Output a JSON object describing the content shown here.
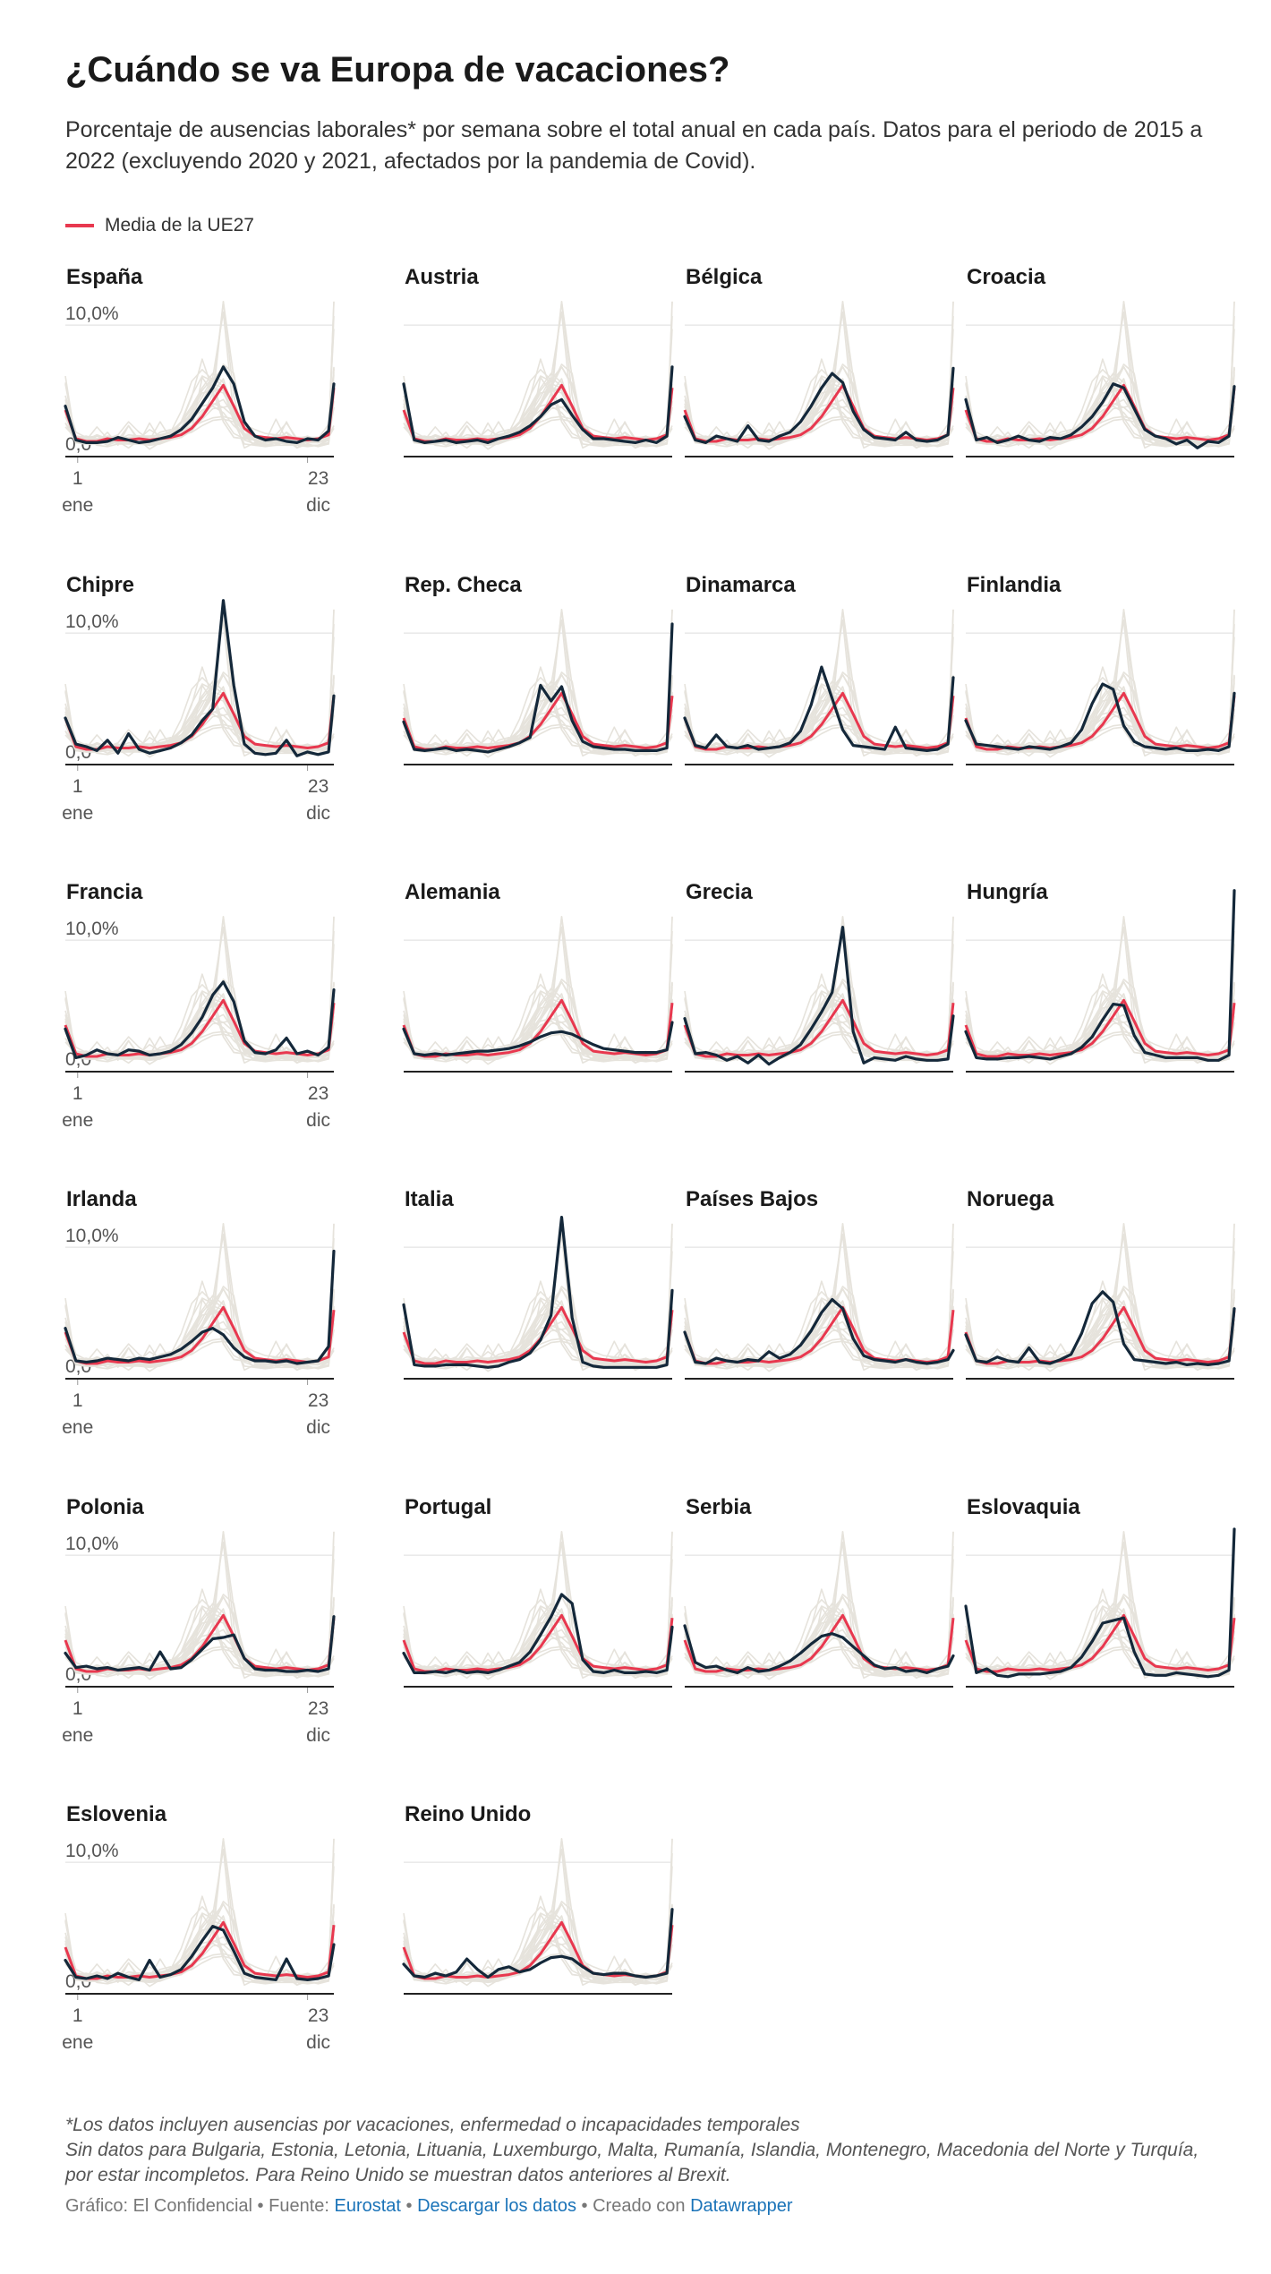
{
  "header": {
    "title": "¿Cuándo se va Europa de vacaciones?",
    "subtitle": "Porcentaje de ausencias laborales* por semana sobre el total anual en cada país. Datos para el periodo de 2015 a 2022 (excluyendo 2020 y 2021, afectados por la pandemia de Covid).",
    "legend_label": "Media de la UE27"
  },
  "colors": {
    "eu_average": "#e8384f",
    "country": "#14283a",
    "background_lines": "#e6e3dc",
    "grid": "#dddddd"
  },
  "axis": {
    "y_top_label": "10,0%",
    "y_bottom_label": "0,0",
    "x_start": "1",
    "x_start_sub": "ene",
    "x_end": "23",
    "x_end_sub": "dic"
  },
  "chart_data": {
    "type": "line",
    "x_unit": "semana",
    "x": [
      1,
      3,
      5,
      7,
      9,
      11,
      13,
      15,
      17,
      19,
      21,
      23,
      25,
      27,
      29,
      31,
      33,
      35,
      37,
      39,
      41,
      43,
      45,
      47,
      49,
      51,
      52
    ],
    "ylim": [
      0,
      12
    ],
    "eu_average": [
      3.5,
      1.3,
      1.1,
      1.1,
      1.3,
      1.2,
      1.2,
      1.3,
      1.2,
      1.3,
      1.4,
      1.6,
      2.1,
      3.0,
      4.2,
      5.4,
      3.8,
      2.1,
      1.5,
      1.4,
      1.3,
      1.4,
      1.3,
      1.2,
      1.3,
      1.6,
      5.2
    ],
    "panels": [
      {
        "name": "España",
        "x_axis": true,
        "values": [
          3.8,
          1.2,
          1.0,
          1.0,
          1.1,
          1.4,
          1.2,
          1.0,
          1.1,
          1.3,
          1.5,
          2.0,
          2.8,
          4.0,
          5.2,
          6.8,
          5.5,
          2.6,
          1.5,
          1.2,
          1.3,
          1.1,
          1.0,
          1.3,
          1.2,
          1.9,
          5.5
        ]
      },
      {
        "name": "Austria",
        "x_axis": false,
        "values": [
          5.5,
          1.2,
          1.0,
          1.1,
          1.2,
          1.0,
          1.1,
          1.2,
          1.0,
          1.3,
          1.5,
          1.8,
          2.3,
          3.0,
          3.9,
          4.3,
          3.1,
          2.0,
          1.3,
          1.3,
          1.2,
          1.1,
          1.0,
          1.2,
          1.0,
          1.5,
          6.8
        ]
      },
      {
        "name": "Bélgica",
        "x_axis": false,
        "values": [
          3.0,
          1.2,
          1.0,
          1.5,
          1.3,
          1.1,
          2.3,
          1.2,
          1.1,
          1.5,
          1.8,
          2.6,
          3.8,
          5.2,
          6.3,
          5.6,
          3.4,
          2.0,
          1.4,
          1.3,
          1.2,
          1.8,
          1.2,
          1.1,
          1.2,
          1.6,
          6.7
        ]
      },
      {
        "name": "Croacia",
        "x_axis": false,
        "values": [
          4.3,
          1.2,
          1.4,
          1.0,
          1.2,
          1.5,
          1.2,
          1.1,
          1.4,
          1.3,
          1.6,
          2.2,
          3.0,
          4.1,
          5.5,
          5.2,
          3.6,
          2.0,
          1.5,
          1.3,
          0.9,
          1.2,
          0.6,
          1.1,
          1.0,
          1.5,
          5.3
        ]
      },
      {
        "name": "Chipre",
        "x_axis": true,
        "values": [
          3.5,
          1.5,
          1.3,
          1.0,
          1.8,
          0.8,
          2.3,
          1.1,
          0.8,
          1.0,
          1.2,
          1.6,
          2.2,
          3.3,
          4.2,
          12.5,
          6.0,
          1.5,
          0.8,
          0.7,
          0.8,
          1.8,
          0.6,
          0.9,
          0.7,
          0.9,
          5.2
        ]
      },
      {
        "name": "Rep. Checa",
        "x_axis": false,
        "values": [
          3.2,
          1.1,
          1.0,
          1.1,
          1.2,
          1.0,
          1.1,
          1.0,
          0.9,
          1.1,
          1.3,
          1.6,
          2.0,
          6.0,
          4.8,
          5.9,
          3.3,
          1.7,
          1.3,
          1.2,
          1.1,
          1.1,
          1.0,
          1.0,
          1.0,
          1.2,
          10.7
        ]
      },
      {
        "name": "Dinamarca",
        "x_axis": false,
        "values": [
          3.5,
          1.4,
          1.2,
          2.2,
          1.3,
          1.2,
          1.4,
          1.1,
          1.2,
          1.3,
          1.6,
          2.5,
          4.5,
          7.4,
          5.0,
          2.6,
          1.4,
          1.3,
          1.2,
          1.1,
          2.8,
          1.2,
          1.1,
          1.0,
          1.1,
          1.5,
          6.6
        ]
      },
      {
        "name": "Finlandia",
        "x_axis": false,
        "values": [
          3.3,
          1.5,
          1.4,
          1.3,
          1.2,
          1.1,
          1.3,
          1.2,
          1.1,
          1.3,
          1.6,
          2.6,
          4.6,
          6.1,
          5.7,
          2.9,
          1.7,
          1.3,
          1.2,
          1.1,
          1.2,
          1.0,
          1.0,
          1.1,
          1.0,
          1.3,
          5.4
        ]
      },
      {
        "name": "Francia",
        "x_axis": true,
        "values": [
          3.2,
          1.0,
          1.2,
          1.6,
          1.3,
          1.2,
          1.6,
          1.5,
          1.2,
          1.3,
          1.5,
          2.0,
          2.9,
          4.1,
          5.8,
          6.8,
          5.3,
          2.3,
          1.4,
          1.3,
          1.6,
          2.5,
          1.3,
          1.5,
          1.2,
          1.8,
          6.2
        ]
      },
      {
        "name": "Alemania",
        "x_axis": false,
        "values": [
          3.2,
          1.3,
          1.2,
          1.3,
          1.2,
          1.3,
          1.4,
          1.5,
          1.5,
          1.6,
          1.7,
          1.9,
          2.2,
          2.6,
          2.9,
          3.0,
          2.8,
          2.4,
          2.0,
          1.7,
          1.6,
          1.5,
          1.4,
          1.4,
          1.4,
          1.6,
          3.7
        ]
      },
      {
        "name": "Grecia",
        "x_axis": false,
        "values": [
          4.0,
          1.3,
          1.4,
          1.2,
          0.8,
          1.1,
          0.6,
          1.2,
          0.5,
          1.0,
          1.4,
          2.0,
          3.2,
          4.5,
          6.0,
          11.0,
          3.0,
          0.6,
          1.0,
          0.9,
          0.8,
          1.1,
          0.9,
          0.8,
          0.8,
          0.9,
          4.2
        ]
      },
      {
        "name": "Hungría",
        "x_axis": false,
        "values": [
          3.0,
          1.0,
          0.9,
          0.9,
          1.0,
          1.0,
          1.1,
          1.0,
          0.9,
          1.1,
          1.3,
          1.8,
          2.6,
          3.9,
          5.1,
          5.0,
          2.7,
          1.4,
          1.2,
          1.0,
          1.0,
          1.0,
          1.0,
          0.8,
          0.8,
          1.2,
          13.8
        ]
      },
      {
        "name": "Irlanda",
        "x_axis": true,
        "values": [
          3.8,
          1.3,
          1.2,
          1.3,
          1.5,
          1.4,
          1.3,
          1.5,
          1.4,
          1.6,
          1.8,
          2.2,
          2.8,
          3.5,
          3.8,
          3.3,
          2.3,
          1.6,
          1.3,
          1.3,
          1.2,
          1.3,
          1.1,
          1.2,
          1.3,
          2.4,
          9.7
        ]
      },
      {
        "name": "Italia",
        "x_axis": false,
        "values": [
          5.6,
          1.0,
          0.9,
          0.9,
          1.0,
          1.0,
          1.0,
          0.9,
          0.8,
          0.9,
          1.2,
          1.4,
          1.9,
          2.9,
          4.8,
          12.3,
          4.6,
          1.2,
          0.9,
          0.8,
          0.8,
          0.8,
          0.8,
          0.8,
          0.8,
          1.0,
          6.7
        ]
      },
      {
        "name": "Países Bajos",
        "x_axis": false,
        "values": [
          3.5,
          1.2,
          1.1,
          1.5,
          1.3,
          1.2,
          1.4,
          1.3,
          2.0,
          1.5,
          1.8,
          2.5,
          3.6,
          5.0,
          6.0,
          5.3,
          3.0,
          1.7,
          1.4,
          1.3,
          1.2,
          1.4,
          1.2,
          1.1,
          1.2,
          1.4,
          2.1
        ]
      },
      {
        "name": "Noruega",
        "x_axis": false,
        "values": [
          3.3,
          1.3,
          1.2,
          1.6,
          1.3,
          1.2,
          2.3,
          1.2,
          1.1,
          1.4,
          1.8,
          3.4,
          5.7,
          6.6,
          5.8,
          2.6,
          1.4,
          1.3,
          1.2,
          1.1,
          1.2,
          1.0,
          1.1,
          1.0,
          1.1,
          1.3,
          5.3
        ]
      },
      {
        "name": "Polonia",
        "x_axis": true,
        "values": [
          2.5,
          1.4,
          1.5,
          1.3,
          1.4,
          1.2,
          1.3,
          1.4,
          1.2,
          2.6,
          1.3,
          1.4,
          2.0,
          2.8,
          3.6,
          3.7,
          3.9,
          2.1,
          1.3,
          1.2,
          1.2,
          1.1,
          1.1,
          1.2,
          1.1,
          1.3,
          5.3
        ]
      },
      {
        "name": "Portugal",
        "x_axis": false,
        "values": [
          2.5,
          1.0,
          1.0,
          1.1,
          1.0,
          1.2,
          1.0,
          1.1,
          1.0,
          1.2,
          1.5,
          1.8,
          2.6,
          3.9,
          5.3,
          7.0,
          6.3,
          2.0,
          1.1,
          1.0,
          1.2,
          1.0,
          1.0,
          1.1,
          1.0,
          1.2,
          4.5
        ]
      },
      {
        "name": "Serbia",
        "x_axis": false,
        "values": [
          4.6,
          1.8,
          1.4,
          1.5,
          1.2,
          1.0,
          1.4,
          1.1,
          1.2,
          1.5,
          1.9,
          2.5,
          3.2,
          3.8,
          4.0,
          3.7,
          3.0,
          2.3,
          1.6,
          1.3,
          1.4,
          1.1,
          1.2,
          1.0,
          1.3,
          1.5,
          2.3
        ]
      },
      {
        "name": "Eslovaquia",
        "x_axis": false,
        "values": [
          6.1,
          1.0,
          1.3,
          0.8,
          0.7,
          0.9,
          0.9,
          0.9,
          1.0,
          1.1,
          1.4,
          2.2,
          3.4,
          4.8,
          5.0,
          5.2,
          2.6,
          0.9,
          0.8,
          0.8,
          1.0,
          0.9,
          0.8,
          0.7,
          0.8,
          1.2,
          12.0
        ]
      },
      {
        "name": "Eslovenia",
        "x_axis": true,
        "values": [
          2.5,
          1.2,
          1.1,
          1.3,
          1.1,
          1.5,
          1.2,
          1.0,
          2.5,
          1.2,
          1.4,
          1.8,
          2.8,
          4.0,
          5.1,
          4.8,
          3.2,
          1.5,
          1.2,
          1.1,
          1.0,
          2.6,
          1.1,
          1.0,
          1.1,
          1.3,
          3.7
        ]
      },
      {
        "name": "Reino Unido",
        "x_axis": false,
        "values": [
          2.2,
          1.3,
          1.2,
          1.5,
          1.3,
          1.6,
          2.6,
          1.8,
          1.2,
          1.8,
          2.0,
          1.6,
          1.8,
          2.3,
          2.7,
          2.8,
          2.6,
          2.0,
          1.5,
          1.4,
          1.5,
          1.5,
          1.3,
          1.2,
          1.3,
          1.5,
          6.4
        ]
      }
    ]
  },
  "footer": {
    "note_1": "*Los datos incluyen ausencias por vacaciones, enfermedad o incapacidades temporales",
    "note_2": "Sin datos para Bulgaria, Estonia, Letonia, Lituania, Luxemburgo, Malta, Rumanía, Islandia, Montenegro, Macedonia del Norte y Turquía, por estar incompletos. Para Reino Unido se muestran datos anteriores al Brexit.",
    "credit_prefix": "Gráfico: El Confidencial",
    "sep": " • ",
    "source_prefix": "Fuente: ",
    "source_link": "Eurostat",
    "download_link": "Descargar los datos",
    "created_prefix": "Creado con ",
    "created_link": "Datawrapper"
  }
}
